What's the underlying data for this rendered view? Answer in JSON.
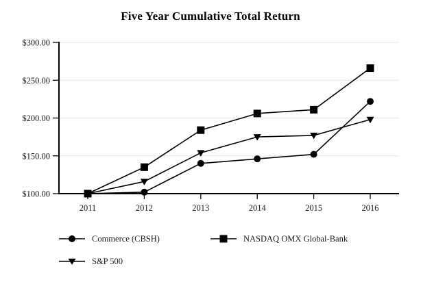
{
  "title": "Five Year Cumulative Total Return",
  "colors": {
    "line": "#000000",
    "axis": "#000000",
    "grid": "#e6e6e6",
    "text": "#1a1a1a"
  },
  "chart_data": {
    "type": "line",
    "title": "Five Year Cumulative Total Return",
    "x_labels": [
      "2011",
      "2012",
      "2013",
      "2014",
      "2015",
      "2016"
    ],
    "y_ticks": [
      100,
      150,
      200,
      250,
      300
    ],
    "y_tick_labels": [
      "$100.00",
      "$150.00",
      "$200.00",
      "$250.00",
      "$300.00"
    ],
    "ylim": [
      100,
      300
    ],
    "grid": "horizontal-only",
    "legend_position": "bottom-left",
    "series": [
      {
        "name": "Commerce (CBSH)",
        "marker": "circle",
        "color": "#000000",
        "values": [
          100,
          102,
          140,
          146,
          152,
          222
        ]
      },
      {
        "name": "NASDAQ OMX Global-Bank",
        "marker": "square",
        "color": "#000000",
        "values": [
          100,
          135,
          184,
          206,
          211,
          266
        ]
      },
      {
        "name": "S&P 500",
        "marker": "triangle-down",
        "color": "#000000",
        "values": [
          100,
          116,
          154,
          175,
          177,
          198
        ]
      }
    ]
  }
}
